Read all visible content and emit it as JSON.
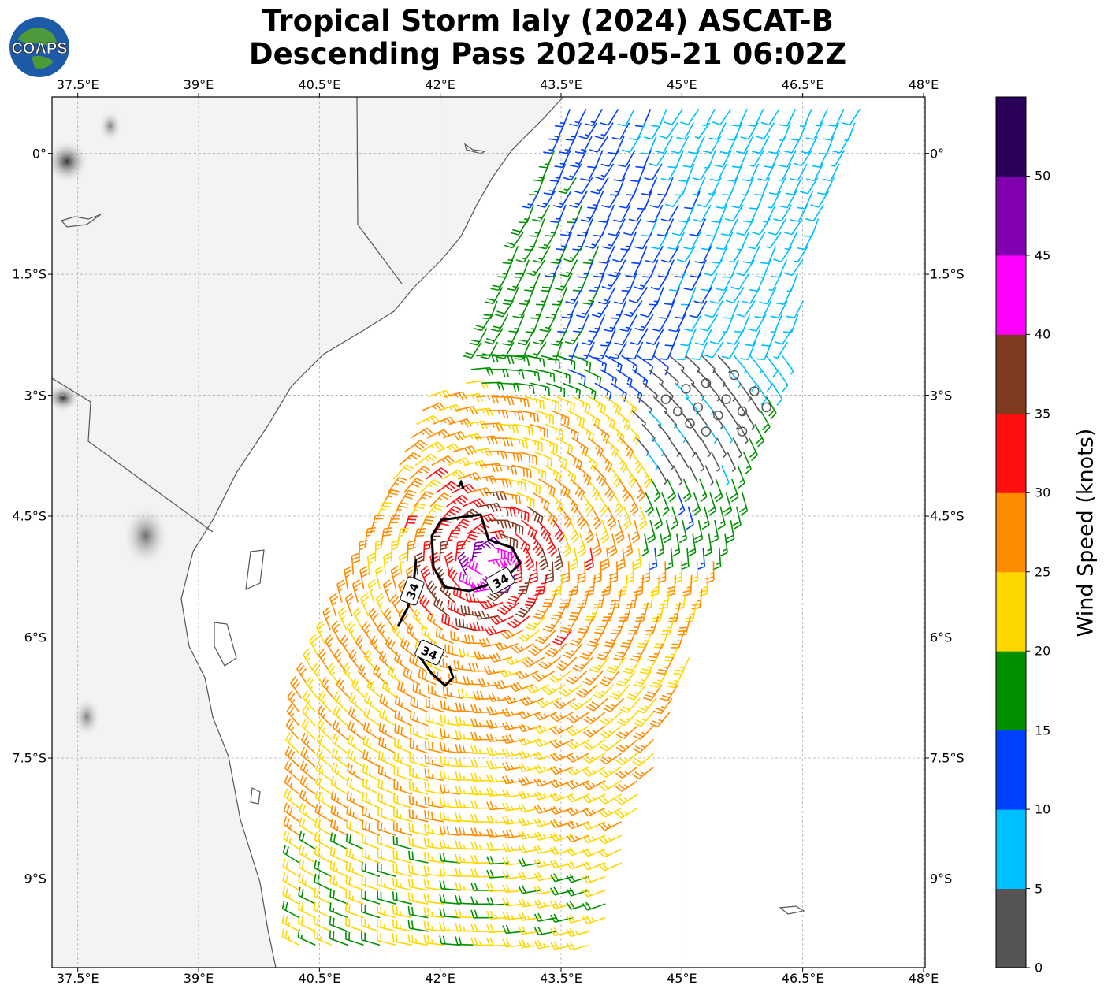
{
  "title_line1": "Tropical Storm Ialy (2024) ASCAT-B",
  "title_line2": "Descending Pass 2024-05-21 06:02Z",
  "logo_text": "COAPS",
  "lon_labels": [
    "37.5°E",
    "39°E",
    "40.5°E",
    "42°E",
    "43.5°E",
    "45°E",
    "46.5°E",
    "48°E"
  ],
  "lat_labels": [
    "0°",
    "1.5°S",
    "3°S",
    "4.5°S",
    "6°S",
    "7.5°S",
    "9°S"
  ],
  "colorbar": {
    "title": "Wind Speed (knots)",
    "ticks": [
      "0",
      "5",
      "10",
      "15",
      "20",
      "25",
      "30",
      "35",
      "40",
      "45",
      "50"
    ],
    "colors": [
      "#555555",
      "#00bfff",
      "#0040ff",
      "#009000",
      "#ffd700",
      "#ff8c00",
      "#ff1010",
      "#7f3b20",
      "#ff00ff",
      "#8000b0",
      "#2a005a"
    ]
  },
  "contour_labels": [
    "34",
    "34",
    "34"
  ],
  "storm_center": {
    "lon": 42.6,
    "lat": -5.1
  }
}
